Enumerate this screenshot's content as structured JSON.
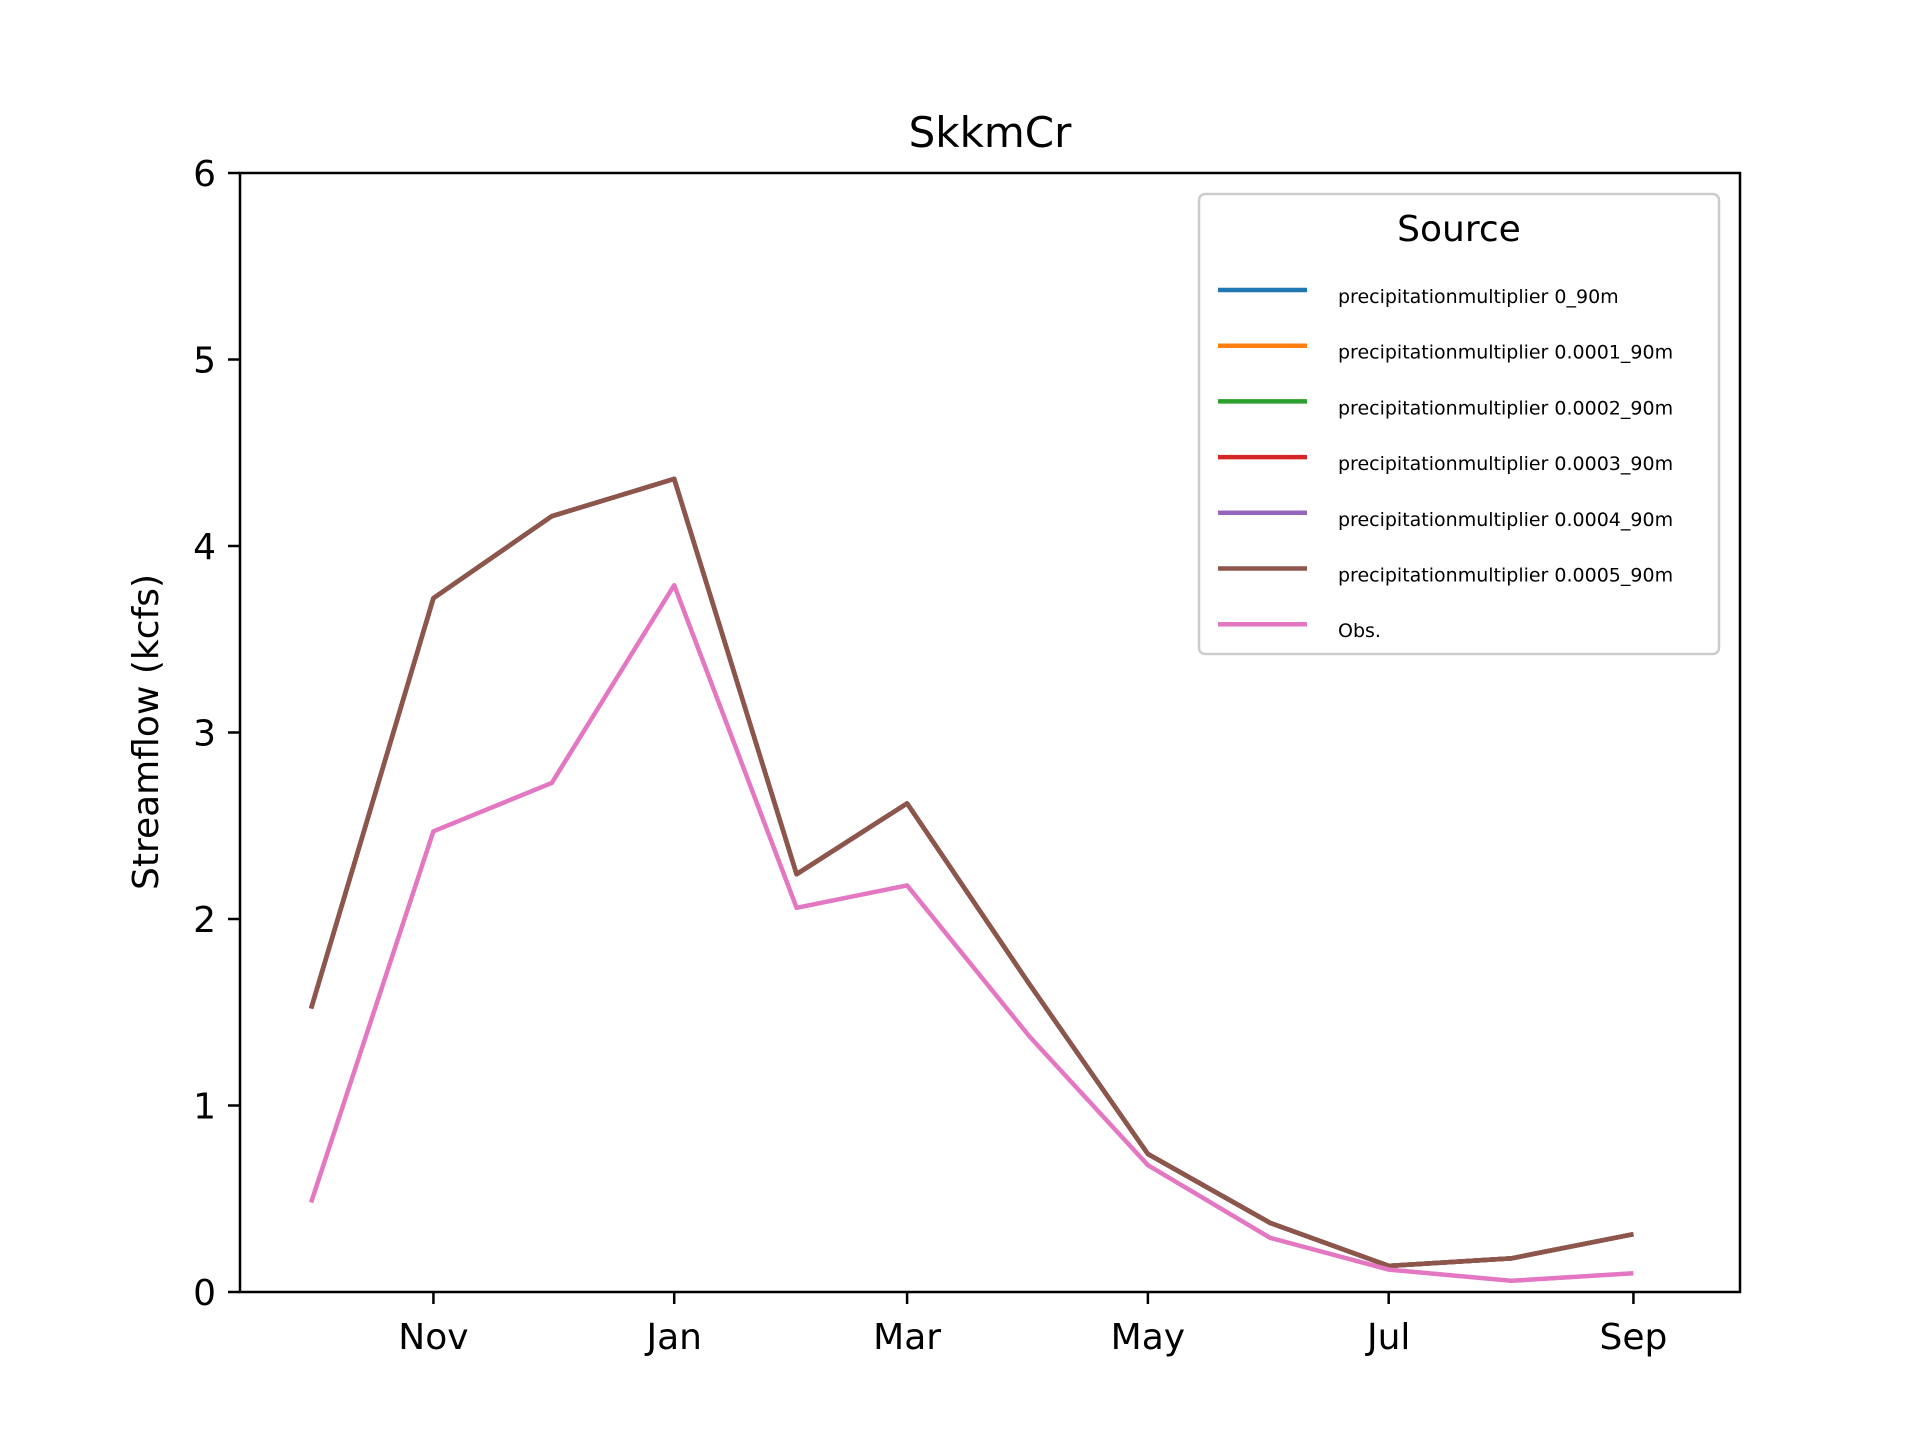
{
  "chart_data": {
    "type": "line",
    "title": "SkkmCr",
    "xlabel": "",
    "ylabel": "Streamflow (kcfs)",
    "ylim": [
      0,
      6
    ],
    "yticks": [
      0,
      1,
      2,
      3,
      4,
      5,
      6
    ],
    "xticks": [
      "Nov",
      "Jan",
      "Mar",
      "May",
      "Jul",
      "Sep"
    ],
    "xlim": [
      "Sep 13",
      "Sep 28"
    ],
    "x": [
      "Oct 1",
      "Nov 1",
      "Dec 1",
      "Jan 1",
      "Feb 1",
      "Mar 1",
      "Apr 1",
      "May 1",
      "Jun 1",
      "Jul 1",
      "Aug 1",
      "Sep 1"
    ],
    "grid": false,
    "legend": {
      "title": "Source",
      "placement": "upper right"
    },
    "series": [
      {
        "name": "precipitationmultiplier 0_90m",
        "color": "#1f77b4",
        "values": [
          1.52,
          3.72,
          4.16,
          4.36,
          2.24,
          2.62,
          1.65,
          0.74,
          0.37,
          0.14,
          0.18,
          0.31
        ]
      },
      {
        "name": "precipitationmultiplier 0.0001_90m",
        "color": "#ff7f0e",
        "values": [
          1.52,
          3.72,
          4.16,
          4.36,
          2.24,
          2.62,
          1.65,
          0.74,
          0.37,
          0.14,
          0.18,
          0.31
        ]
      },
      {
        "name": "precipitationmultiplier 0.0002_90m",
        "color": "#2ca02c",
        "values": [
          1.52,
          3.72,
          4.16,
          4.36,
          2.24,
          2.62,
          1.65,
          0.74,
          0.37,
          0.14,
          0.18,
          0.31
        ]
      },
      {
        "name": "precipitationmultiplier 0.0003_90m",
        "color": "#d62728",
        "values": [
          1.52,
          3.72,
          4.16,
          4.36,
          2.24,
          2.62,
          1.65,
          0.74,
          0.37,
          0.14,
          0.18,
          0.31
        ]
      },
      {
        "name": "precipitationmultiplier 0.0004_90m",
        "color": "#9467bd",
        "values": [
          1.52,
          3.72,
          4.16,
          4.36,
          2.24,
          2.62,
          1.65,
          0.74,
          0.37,
          0.14,
          0.18,
          0.31
        ]
      },
      {
        "name": "precipitationmultiplier 0.0005_90m",
        "color": "#8c564b",
        "values": [
          1.52,
          3.72,
          4.16,
          4.36,
          2.24,
          2.62,
          1.65,
          0.74,
          0.37,
          0.14,
          0.18,
          0.31
        ]
      },
      {
        "name": "Obs.",
        "color": "#e377c2",
        "values": [
          0.48,
          2.47,
          2.73,
          3.79,
          2.06,
          2.18,
          1.37,
          0.68,
          0.29,
          0.12,
          0.06,
          0.1
        ]
      }
    ]
  }
}
